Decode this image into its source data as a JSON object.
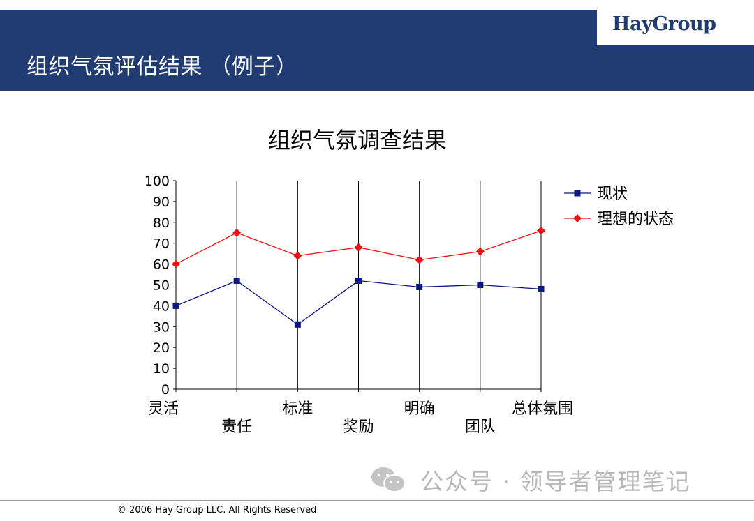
{
  "header": {
    "title": "组织气氛评估结果 （例子）",
    "brand": "HayGroup"
  },
  "colors": {
    "header_bg": "#213c72",
    "series_current": "#0a1684",
    "series_ideal": "#ee1111"
  },
  "chart_data": {
    "type": "line",
    "title": "组织气氛调查结果",
    "categories": [
      "灵活",
      "责任",
      "标准",
      "奖励",
      "明确",
      "团队",
      "总体氛围"
    ],
    "ylim": [
      0,
      100
    ],
    "yticks": [
      0,
      10,
      20,
      30,
      40,
      50,
      60,
      70,
      80,
      90,
      100
    ],
    "legend_position": "top-right",
    "series": [
      {
        "name": "现状",
        "marker": "square",
        "values": [
          40,
          52,
          31,
          52,
          49,
          50,
          48
        ]
      },
      {
        "name": "理想的状态",
        "marker": "diamond",
        "values": [
          60,
          75,
          64,
          68,
          62,
          66,
          76
        ]
      }
    ]
  },
  "watermark": {
    "text": "公众号 · 领导者管理笔记",
    "icon": "wechat-icon"
  },
  "footer": {
    "copyright": "© 2006 Hay Group LLC. All Rights Reserved"
  }
}
